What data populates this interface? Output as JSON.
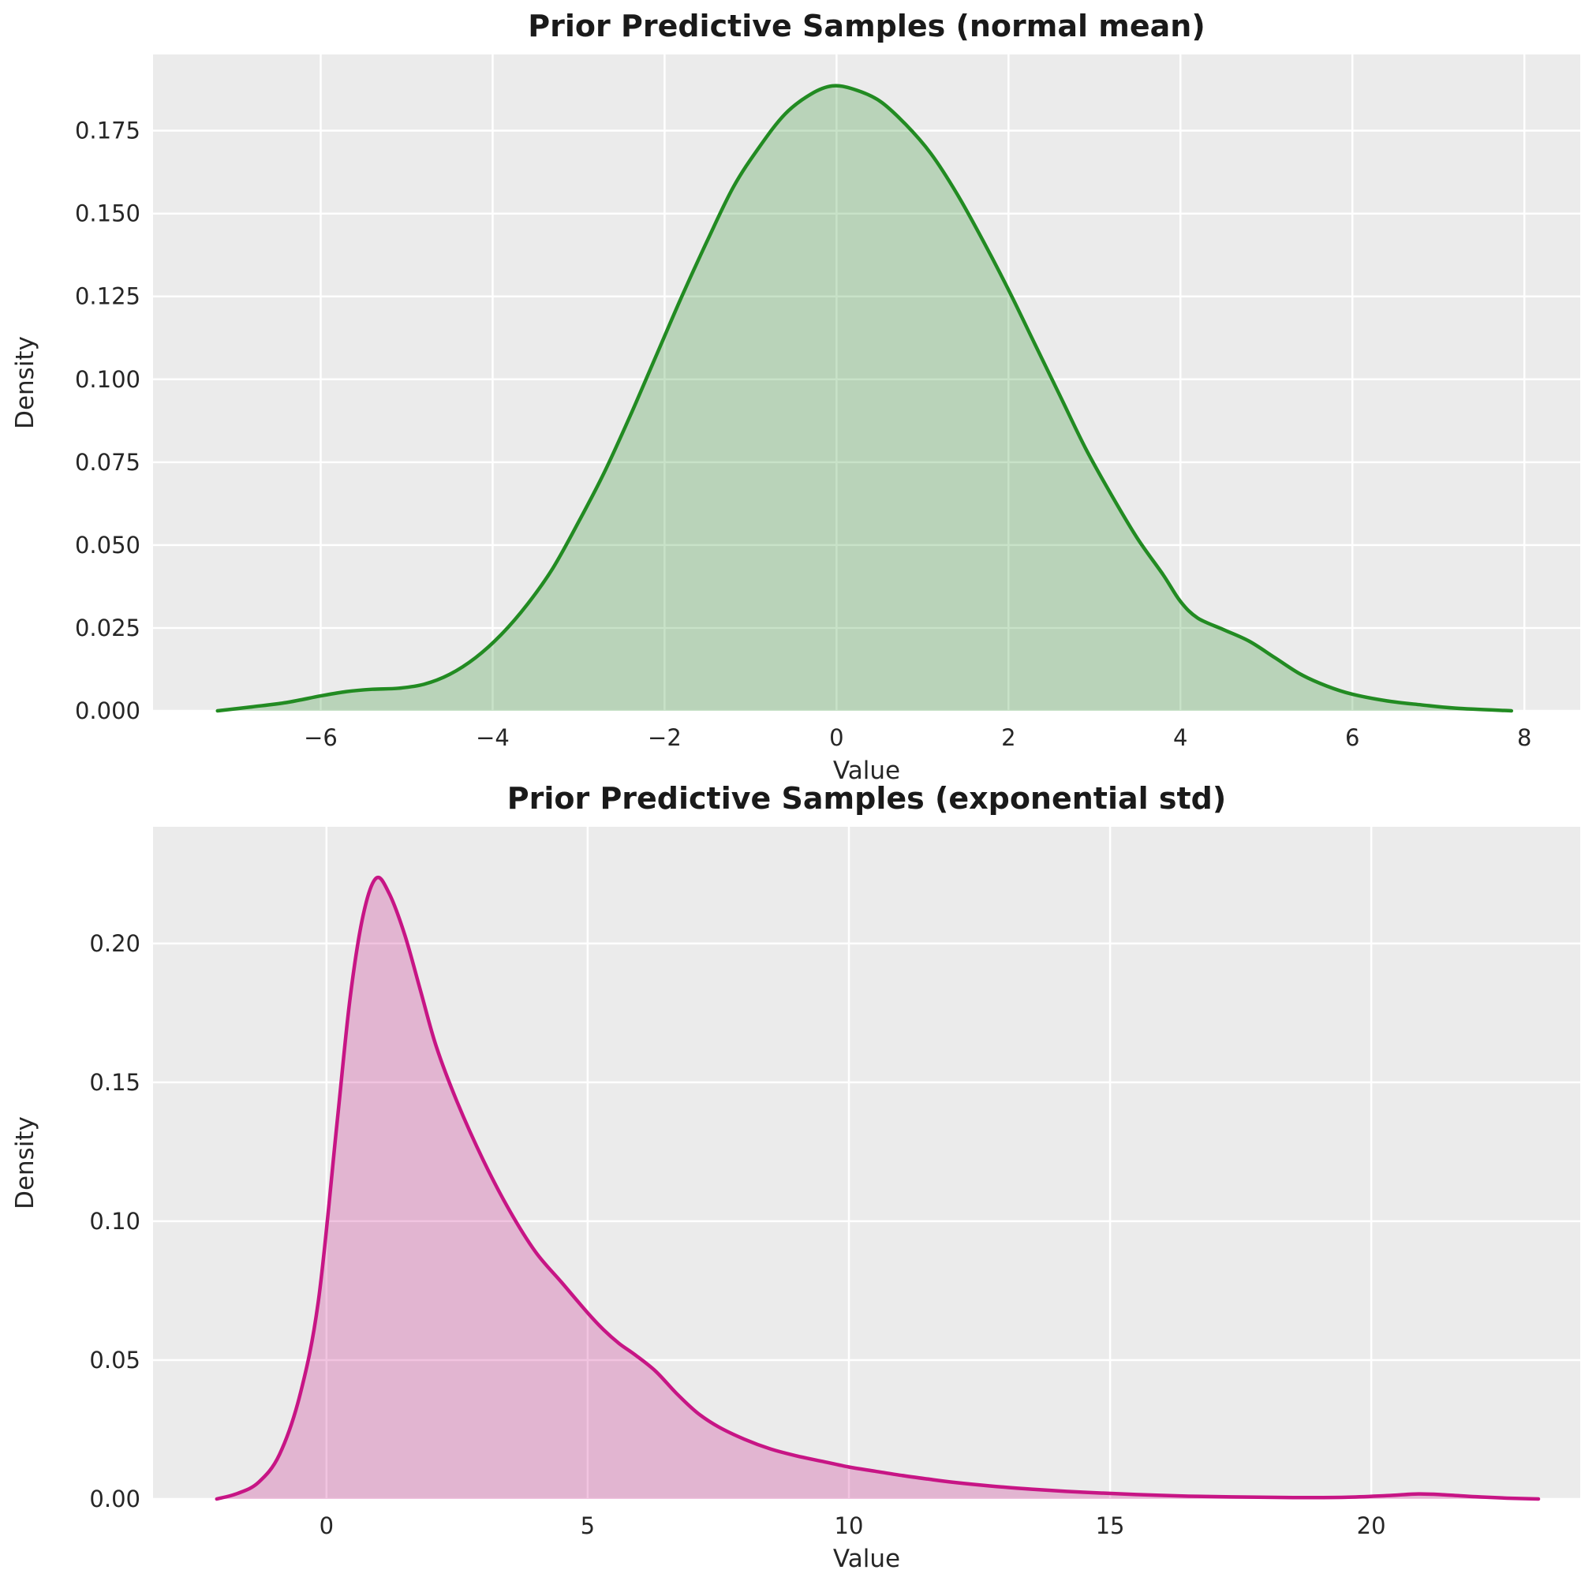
{
  "style": {
    "figure_bg": "#ffffff",
    "axes_bg": "#ebebeb",
    "grid_color": "#ffffff",
    "tick_label_color": "#262626",
    "axis_label_color": "#262626",
    "title_color": "#1a1a1a"
  },
  "chart_data": [
    {
      "type": "area",
      "kind": "kde-density",
      "title": "Prior Predictive Samples (normal mean)",
      "xlabel": "Value",
      "ylabel": "Density",
      "line_color": "#228b22",
      "fill_color": "#228b22",
      "fill_opacity": 0.25,
      "grid": true,
      "legend_visible": false,
      "xlim": [
        -7.95,
        8.65
      ],
      "ylim": [
        0,
        0.198
      ],
      "xticks": {
        "values": [
          -6,
          -4,
          -2,
          0,
          2,
          4,
          6,
          8
        ],
        "labels": [
          "−6",
          "−4",
          "−2",
          "0",
          "2",
          "4",
          "6",
          "8"
        ]
      },
      "yticks": {
        "values": [
          0,
          0.025,
          0.05,
          0.075,
          0.1,
          0.125,
          0.15,
          0.175
        ],
        "labels": [
          "0.000",
          "0.025",
          "0.050",
          "0.075",
          "0.100",
          "0.125",
          "0.150",
          "0.175"
        ]
      },
      "peak": {
        "x": -0.05,
        "density": 0.1885
      },
      "series": [
        {
          "name": "prior-predictive-normal-mean",
          "x": [
            -7.2,
            -6.8,
            -6.4,
            -6.0,
            -5.7,
            -5.4,
            -5.1,
            -4.8,
            -4.5,
            -4.2,
            -3.9,
            -3.6,
            -3.3,
            -3.0,
            -2.7,
            -2.4,
            -2.1,
            -1.8,
            -1.5,
            -1.2,
            -0.9,
            -0.6,
            -0.3,
            -0.05,
            0.2,
            0.5,
            0.8,
            1.1,
            1.4,
            1.7,
            2.0,
            2.3,
            2.6,
            2.9,
            3.2,
            3.5,
            3.8,
            4.0,
            4.2,
            4.5,
            4.8,
            5.1,
            5.4,
            5.7,
            6.0,
            6.4,
            6.8,
            7.2,
            7.85
          ],
          "y": [
            0,
            0.0012,
            0.0025,
            0.0045,
            0.0058,
            0.0065,
            0.0068,
            0.008,
            0.011,
            0.016,
            0.023,
            0.032,
            0.043,
            0.057,
            0.072,
            0.089,
            0.107,
            0.125,
            0.142,
            0.158,
            0.17,
            0.18,
            0.186,
            0.1885,
            0.1875,
            0.184,
            0.177,
            0.168,
            0.156,
            0.142,
            0.127,
            0.111,
            0.095,
            0.079,
            0.065,
            0.052,
            0.041,
            0.033,
            0.028,
            0.0245,
            0.021,
            0.016,
            0.011,
            0.0075,
            0.005,
            0.003,
            0.0018,
            0.0008,
            0
          ]
        }
      ]
    },
    {
      "type": "area",
      "kind": "kde-density",
      "title": "Prior Predictive Samples (exponential std)",
      "xlabel": "Value",
      "ylabel": "Density",
      "line_color": "#c71585",
      "fill_color": "#c71585",
      "fill_opacity": 0.25,
      "grid": true,
      "legend_visible": false,
      "xlim": [
        -3.32,
        24.0
      ],
      "ylim": [
        0,
        0.242
      ],
      "xticks": {
        "values": [
          0,
          5,
          10,
          15,
          20
        ],
        "labels": [
          "0",
          "5",
          "10",
          "15",
          "20"
        ]
      },
      "yticks": {
        "values": [
          0,
          0.05,
          0.1,
          0.15,
          0.2
        ],
        "labels": [
          "0.00",
          "0.05",
          "0.10",
          "0.15",
          "0.20"
        ]
      },
      "peak": {
        "x": 0.95,
        "density": 0.2235
      },
      "series": [
        {
          "name": "prior-predictive-exponential-std",
          "x": [
            -2.1,
            -1.7,
            -1.3,
            -0.9,
            -0.5,
            -0.15,
            0.2,
            0.45,
            0.7,
            0.95,
            1.2,
            1.5,
            1.8,
            2.1,
            2.5,
            3.0,
            3.5,
            4.0,
            4.5,
            5.0,
            5.3,
            5.6,
            5.9,
            6.3,
            6.7,
            7.1,
            7.5,
            8.0,
            8.5,
            9.0,
            9.5,
            10.0,
            10.5,
            11.0,
            11.5,
            12.0,
            12.7,
            13.5,
            14.5,
            15.5,
            16.5,
            17.5,
            18.5,
            19.5,
            20.3,
            20.9,
            21.4,
            22.0,
            22.6,
            23.2
          ],
          "y": [
            0,
            0.002,
            0.006,
            0.016,
            0.038,
            0.072,
            0.135,
            0.18,
            0.21,
            0.2235,
            0.218,
            0.203,
            0.183,
            0.163,
            0.143,
            0.122,
            0.104,
            0.089,
            0.078,
            0.067,
            0.061,
            0.056,
            0.052,
            0.046,
            0.038,
            0.031,
            0.026,
            0.0215,
            0.018,
            0.0155,
            0.0135,
            0.0115,
            0.01,
            0.0085,
            0.0072,
            0.006,
            0.0047,
            0.0035,
            0.0024,
            0.0016,
            0.001,
            0.0007,
            0.0005,
            0.0006,
            0.0012,
            0.0018,
            0.0015,
            0.0008,
            0.0003,
            0
          ]
        }
      ]
    }
  ]
}
